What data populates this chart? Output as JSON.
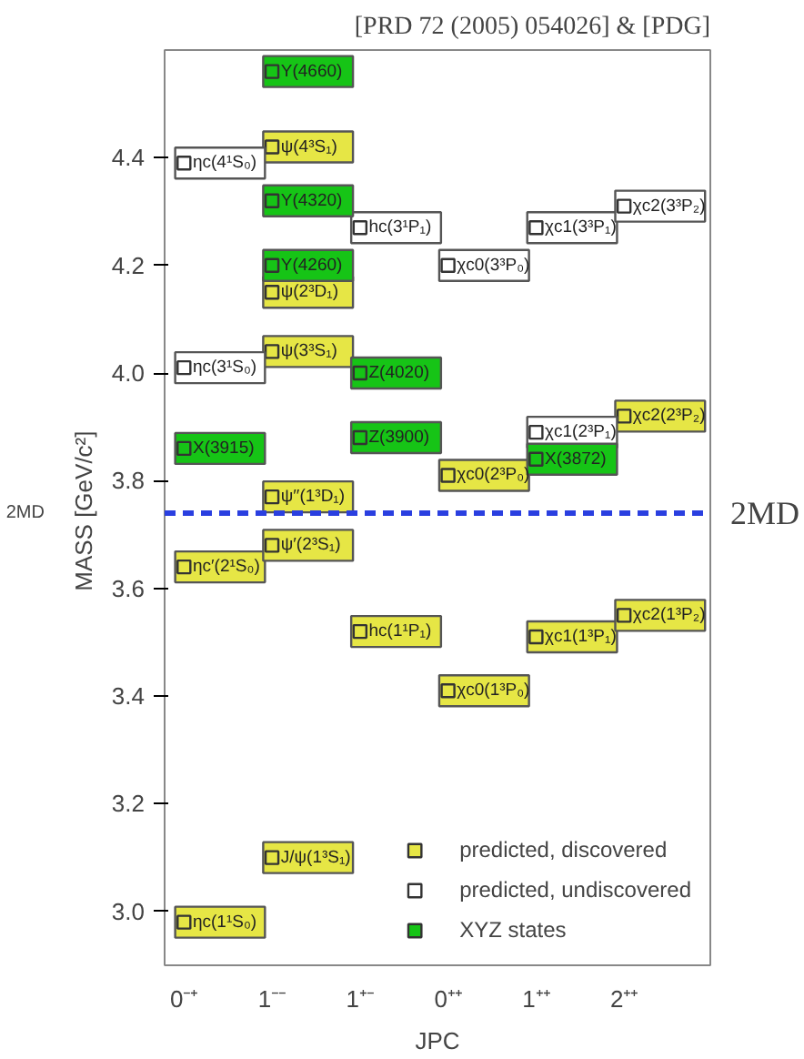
{
  "chart_data": {
    "type": "scatter",
    "title": "[PRD 72 (2005) 054026] & [PDG]",
    "xlabel": "JPC",
    "ylabel": "MASS  [GeV/c²]",
    "categories": [
      "0⁻⁺",
      "1⁻⁻",
      "1⁺⁻",
      "0⁺⁺",
      "1⁺⁺",
      "2⁺⁺"
    ],
    "series": [
      {
        "name": "predicted, discovered",
        "color": "#e6e645",
        "x": [
          "0⁻⁺",
          "1⁻⁻",
          "0⁻⁺",
          "1⁻⁻",
          "1⁻⁻",
          "0⁺⁺",
          "2⁺⁺",
          "1⁻⁻",
          "1⁻⁻",
          "1⁻⁻",
          "1⁺⁻",
          "0⁺⁺",
          "1⁺⁺",
          "2⁺⁺"
        ],
        "values": [
          2.98,
          3.1,
          3.64,
          3.68,
          3.77,
          3.81,
          3.92,
          4.04,
          4.15,
          4.42,
          3.52,
          3.41,
          3.51,
          3.55
        ]
      },
      {
        "name": "predicted, undiscovered",
        "color": "#ffffff",
        "x": [
          "0⁻⁺",
          "0⁻⁺",
          "1⁺⁻",
          "0⁺⁺",
          "1⁺⁺",
          "2⁺⁺",
          "1⁺⁺"
        ],
        "values": [
          4.39,
          4.01,
          4.27,
          4.2,
          4.27,
          4.31,
          3.89
        ]
      },
      {
        "name": "XYZ states",
        "color": "#16c416",
        "x": [
          "1⁻⁻",
          "1⁻⁻",
          "1⁻⁻",
          "1⁺⁻",
          "1⁺⁻",
          "0⁻⁺",
          "1⁺⁺"
        ],
        "values": [
          4.56,
          4.32,
          4.2,
          4.0,
          3.88,
          3.86,
          3.84
        ]
      }
    ],
    "annotations": [
      {
        "text": "ηc(1¹S₀)",
        "x": "0⁻⁺",
        "y": 2.98
      },
      {
        "text": "J/ψ(1³S₁)",
        "x": "1⁻⁻",
        "y": 3.1
      },
      {
        "text": "ηc′(2¹S₀)",
        "x": "0⁻⁺",
        "y": 3.64
      },
      {
        "text": "ψ′(2³S₁)",
        "x": "1⁻⁻",
        "y": 3.68
      },
      {
        "text": "ψ′′(1³D₁)",
        "x": "1⁻⁻",
        "y": 3.77
      },
      {
        "text": "χc0(2³P₀)",
        "x": "0⁺⁺",
        "y": 3.81
      },
      {
        "text": "χc2(2³P₂)",
        "x": "2⁺⁺",
        "y": 3.92
      },
      {
        "text": "ψ(3³S₁)",
        "x": "1⁻⁻",
        "y": 4.04
      },
      {
        "text": "ψ(2³D₁)",
        "x": "1⁻⁻",
        "y": 4.15
      },
      {
        "text": "ψ(4³S₁)",
        "x": "1⁻⁻",
        "y": 4.42
      },
      {
        "text": "hc(1¹P₁)",
        "x": "1⁺⁻",
        "y": 3.52
      },
      {
        "text": "χc0(1³P₀)",
        "x": "0⁺⁺",
        "y": 3.41
      },
      {
        "text": "χc1(1³P₁)",
        "x": "1⁺⁺",
        "y": 3.51
      },
      {
        "text": "χc2(1³P₂)",
        "x": "2⁺⁺",
        "y": 3.55
      },
      {
        "text": "ηc(4¹S₀)",
        "x": "0⁻⁺",
        "y": 4.39
      },
      {
        "text": "ηc(3¹S₀)",
        "x": "0⁻⁺",
        "y": 4.01
      },
      {
        "text": "hc(3¹P₁)",
        "x": "1⁺⁻",
        "y": 4.27
      },
      {
        "text": "χc0(3³P₀)",
        "x": "0⁺⁺",
        "y": 4.2
      },
      {
        "text": "χc1(3³P₁)",
        "x": "1⁺⁺",
        "y": 4.27
      },
      {
        "text": "χc2(3³P₂)",
        "x": "2⁺⁺",
        "y": 4.31
      },
      {
        "text": "χc1(2³P₁)",
        "x": "1⁺⁺",
        "y": 3.89
      },
      {
        "text": "Y(4660)",
        "x": "1⁻⁻",
        "y": 4.56
      },
      {
        "text": "Y(4320)",
        "x": "1⁻⁻",
        "y": 4.32
      },
      {
        "text": "Y(4260)",
        "x": "1⁻⁻",
        "y": 4.2
      },
      {
        "text": "Z(4020)",
        "x": "1⁺⁻",
        "y": 4.0
      },
      {
        "text": "Z(3900)",
        "x": "1⁺⁻",
        "y": 3.88
      },
      {
        "text": "X(3915)",
        "x": "0⁻⁺",
        "y": 3.86
      },
      {
        "text": "X(3872)",
        "x": "1⁺⁺",
        "y": 3.84
      }
    ],
    "marker": "square",
    "legend": "bottom right",
    "grid": false,
    "ylim": [
      2.9,
      4.6
    ],
    "yticks": [
      {
        "value": 3.0,
        "label": "3.0"
      },
      {
        "value": 3.2,
        "label": "3.2"
      },
      {
        "value": 3.4,
        "label": "3.4"
      },
      {
        "value": 3.6,
        "label": "3.6"
      },
      {
        "value": 3.8,
        "label": "3.8"
      },
      {
        "value": 4.0,
        "label": "4.0"
      },
      {
        "value": 4.2,
        "label": "4.2"
      },
      {
        "value": 4.4,
        "label": "4.4"
      }
    ],
    "ref_lines": [
      {
        "axis": "y",
        "value": 3.74,
        "label": "2MD",
        "color": "#2a3fe0",
        "line_style": "dashed"
      }
    ]
  }
}
